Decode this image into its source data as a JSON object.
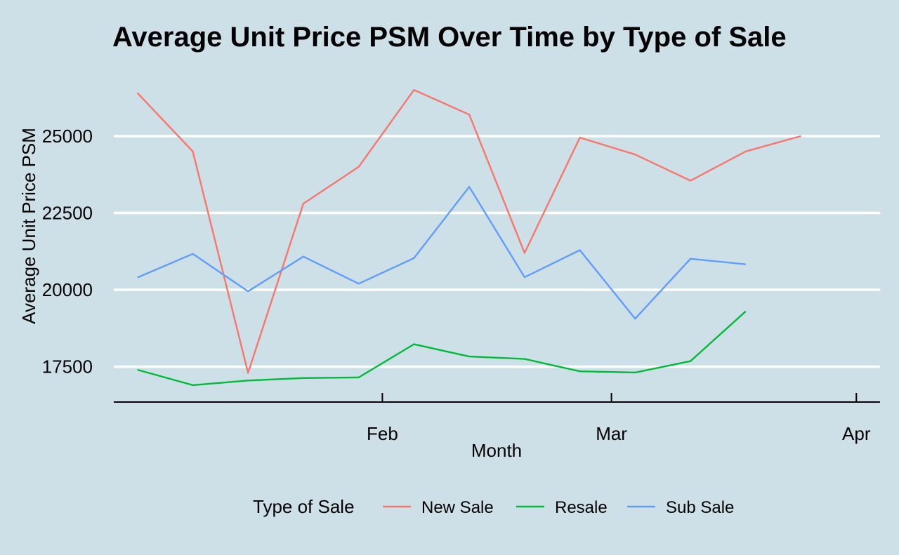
{
  "chart_data": {
    "type": "line",
    "title": "Average Unit Price PSM Over Time by Type of Sale",
    "xlabel": "Month",
    "ylabel": "Average Unit Price PSM",
    "x": [
      "2024-01-01",
      "2024-01-08",
      "2024-01-15",
      "2024-01-22",
      "2024-01-29",
      "2024-02-05",
      "2024-02-12",
      "2024-02-19",
      "2024-02-26",
      "2024-03-04",
      "2024-03-11",
      "2024-03-18",
      "2024-03-25"
    ],
    "x_ticks": [
      {
        "date": "2024-02-01",
        "label": "Feb"
      },
      {
        "date": "2024-03-01",
        "label": "Mar"
      },
      {
        "date": "2024-04-01",
        "label": "Apr"
      }
    ],
    "xlim": [
      "2023-12-29",
      "2024-04-04"
    ],
    "ylim": [
      16350,
      27600
    ],
    "y_ticks": [
      17500,
      20000,
      22500,
      25000
    ],
    "grid": "horizontal major lines",
    "series": [
      {
        "name": "New Sale",
        "color": "#f8766d",
        "values": [
          26400,
          24500,
          17300,
          22800,
          24000,
          26500,
          25700,
          21200,
          24950,
          24400,
          23550,
          24500,
          25000
        ]
      },
      {
        "name": "Resale",
        "color": "#00ba38",
        "values": [
          17400,
          16900,
          17050,
          17130,
          17150,
          18230,
          17830,
          17750,
          17350,
          17310,
          17680,
          19300,
          null
        ]
      },
      {
        "name": "Sub Sale",
        "color": "#619cff",
        "values": [
          20400,
          21170,
          19950,
          21080,
          20200,
          21030,
          23350,
          20410,
          21290,
          19060,
          21010,
          20830,
          null
        ]
      }
    ],
    "legend": {
      "title": "Type of Sale",
      "position": "bottom"
    }
  }
}
